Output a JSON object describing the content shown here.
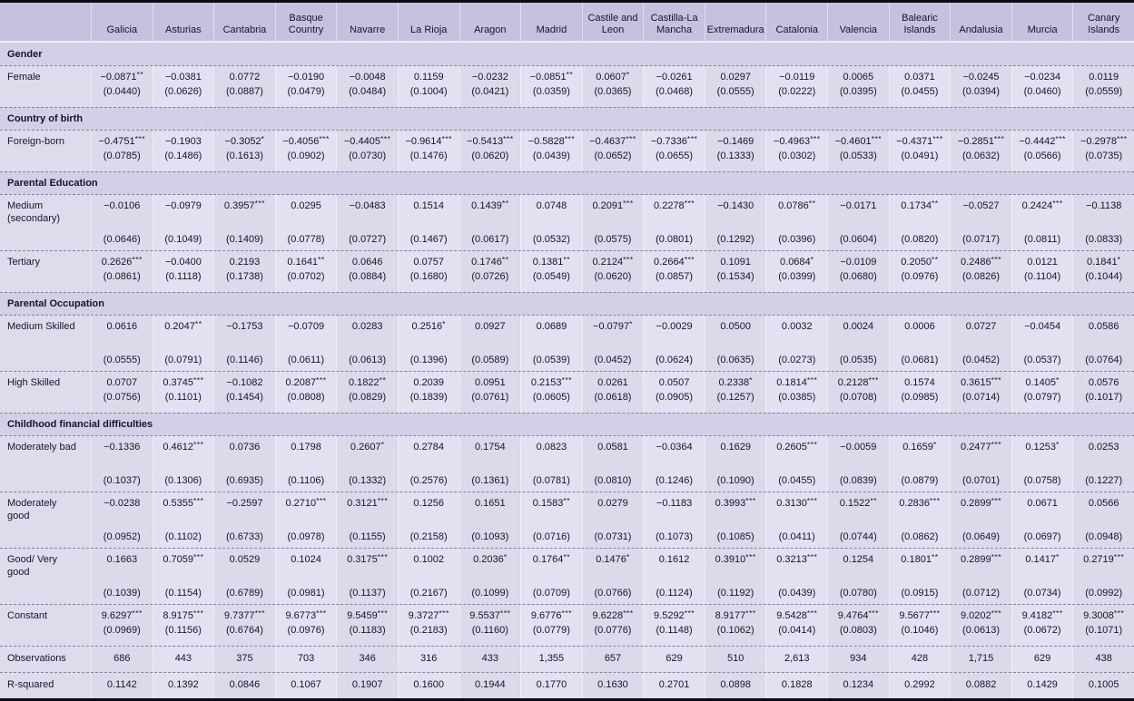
{
  "colors": {
    "header_bg": "#c5c2e0",
    "body_bg": "#dedbec",
    "section_bg": "#d2cfe7",
    "text": "#15142e",
    "border": "#0b0b16"
  },
  "table": {
    "columns": [
      "Galicia",
      "Asturias",
      "Cantabria",
      "Basque Country",
      "Navarre",
      "La Rioja",
      "Aragon",
      "Madrid",
      "Castile and Leon",
      "Castilla-La Mancha",
      "Extremadura",
      "Catalonia",
      "Valencia",
      "Balearic Islands",
      "Andalusia",
      "Murcia",
      "Canary Islands"
    ],
    "rows": [
      {
        "type": "section",
        "label": "Gender"
      },
      {
        "type": "coef",
        "label": "Female",
        "coef": [
          "−0.0871**",
          "−0.0381",
          "0.0772",
          "−0.0190",
          "−0.0048",
          "0.1159",
          "−0.0232",
          "−0.0851**",
          "0.0607*",
          "−0.0261",
          "0.0297",
          "−0.0119",
          "0.0065",
          "0.0371",
          "−0.0245",
          "−0.0234",
          "0.0119"
        ],
        "se": [
          "(0.0440)",
          "(0.0626)",
          "(0.0887)",
          "(0.0479)",
          "(0.0484)",
          "(0.1004)",
          "(0.0421)",
          "(0.0359)",
          "(0.0365)",
          "(0.0468)",
          "(0.0555)",
          "(0.0222)",
          "(0.0395)",
          "(0.0455)",
          "(0.0394)",
          "(0.0460)",
          "(0.0559)"
        ]
      },
      {
        "type": "section",
        "label": "Country of birth"
      },
      {
        "type": "coef",
        "label": "Foreign-born",
        "coef": [
          "−0.4751***",
          "−0.1903",
          "−0.3052*",
          "−0.4056***",
          "−0.4405***",
          "−0.9614***",
          "−0.5413***",
          "−0.5828***",
          "−0.4637***",
          "−0.7336***",
          "−0.1469",
          "−0.4963***",
          "−0.4601***",
          "−0.4371***",
          "−0.2851***",
          "−0.4442***",
          "−0.2978***"
        ],
        "se": [
          "(0.0785)",
          "(0.1486)",
          "(0.1613)",
          "(0.0902)",
          "(0.0730)",
          "(0.1476)",
          "(0.0620)",
          "(0.0439)",
          "(0.0652)",
          "(0.0655)",
          "(0.1333)",
          "(0.0302)",
          "(0.0533)",
          "(0.0491)",
          "(0.0632)",
          "(0.0566)",
          "(0.0735)"
        ]
      },
      {
        "type": "section",
        "label": "Parental Education"
      },
      {
        "type": "coef",
        "label": "Medium (secondary)",
        "coef": [
          "−0.0106",
          "−0.0979",
          "0.3957***",
          "0.0295",
          "−0.0483",
          "0.1514",
          "0.1439**",
          "0.0748",
          "0.2091***",
          "0.2278***",
          "−0.1430",
          "0.0786**",
          "−0.0171",
          "0.1734**",
          "−0.0527",
          "0.2424***",
          "−0.1138"
        ],
        "se": [
          "(0.0646)",
          "(0.1049)",
          "(0.1409)",
          "(0.0778)",
          "(0.0727)",
          "(0.1467)",
          "(0.0617)",
          "(0.0532)",
          "(0.0575)",
          "(0.0801)",
          "(0.1292)",
          "(0.0396)",
          "(0.0604)",
          "(0.0820)",
          "(0.0717)",
          "(0.0811)",
          "(0.0833)"
        ]
      },
      {
        "type": "coef",
        "label": "Tertiary",
        "coef": [
          "0.2626***",
          "−0.0400",
          "0.2193",
          "0.1641**",
          "0.0646",
          "0.0757",
          "0.1746**",
          "0.1381**",
          "0.2124***",
          "0.2664***",
          "0.1091",
          "0.0684*",
          "−0.0109",
          "0.2050**",
          "0.2486***",
          "0.0121",
          "0.1841*"
        ],
        "se": [
          "(0.0861)",
          "(0.1118)",
          "(0.1738)",
          "(0.0702)",
          "(0.0884)",
          "(0.1680)",
          "(0.0726)",
          "(0.0549)",
          "(0.0620)",
          "(0.0857)",
          "(0.1534)",
          "(0.0399)",
          "(0.0680)",
          "(0.0976)",
          "(0.0826)",
          "(0.1104)",
          "(0.1044)"
        ]
      },
      {
        "type": "section",
        "label": "Parental Occupation"
      },
      {
        "type": "coef",
        "label": "Medium Skilled",
        "coef": [
          "0.0616",
          "0.2047**",
          "−0.1753",
          "−0.0709",
          "0.0283",
          "0.2516*",
          "0.0927",
          "0.0689",
          "−0.0797*",
          "−0.0029",
          "0.0500",
          "0.0032",
          "0.0024",
          "0.0006",
          "0.0727",
          "−0.0454",
          "0.0586"
        ],
        "se": [
          "(0.0555)",
          "(0.0791)",
          "(0.1146)",
          "(0.0611)",
          "(0.0613)",
          "(0.1396)",
          "(0.0589)",
          "(0.0539)",
          "(0.0452)",
          "(0.0624)",
          "(0.0635)",
          "(0.0273)",
          "(0.0535)",
          "(0.0681)",
          "(0.0452)",
          "(0.0537)",
          "(0.0764)"
        ]
      },
      {
        "type": "coef",
        "label": "High Skilled",
        "coef": [
          "0.0707",
          "0.3745***",
          "−0.1082",
          "0.2087***",
          "0.1822**",
          "0.2039",
          "0.0951",
          "0.2153***",
          "0.0261",
          "0.0507",
          "0.2338*",
          "0.1814***",
          "0.2128***",
          "0.1574",
          "0.3615***",
          "0.1405*",
          "0.0576"
        ],
        "se": [
          "(0.0756)",
          "(0.1101)",
          "(0.1454)",
          "(0.0808)",
          "(0.0829)",
          "(0.1839)",
          "(0.0761)",
          "(0.0605)",
          "(0.0618)",
          "(0.0905)",
          "(0.1257)",
          "(0.0385)",
          "(0.0708)",
          "(0.0985)",
          "(0.0714)",
          "(0.0797)",
          "(0.1017)"
        ]
      },
      {
        "type": "section",
        "label": "Childhood financial difficulties"
      },
      {
        "type": "coef",
        "label": "Moderately bad",
        "coef": [
          "−0.1336",
          "0.4612***",
          "0.0736",
          "0.1798",
          "0.2607*",
          "0.2784",
          "0.1754",
          "0.0823",
          "0.0581",
          "−0.0364",
          "0.1629",
          "0.2605***",
          "−0.0059",
          "0.1659*",
          "0.2477***",
          "0.1253*",
          "0.0253"
        ],
        "se": [
          "(0.1037)",
          "(0.1306)",
          "(0.6935)",
          "(0.1106)",
          "(0.1332)",
          "(0.2576)",
          "(0.1361)",
          "(0.0781)",
          "(0.0810)",
          "(0.1246)",
          "(0.1090)",
          "(0.0455)",
          "(0.0839)",
          "(0.0879)",
          "(0.0701)",
          "(0.0758)",
          "(0.1227)"
        ]
      },
      {
        "type": "coef",
        "label": "Moderately good",
        "coef": [
          "−0.0238",
          "0.5355***",
          "−0.2597",
          "0.2710***",
          "0.3121***",
          "0.1256",
          "0.1651",
          "0.1583**",
          "0.0279",
          "−0.1183",
          "0.3993***",
          "0.3130***",
          "0.1522**",
          "0.2836***",
          "0.2899***",
          "0.0671",
          "0.0566"
        ],
        "se": [
          "(0.0952)",
          "(0.1102)",
          "(0.6733)",
          "(0.0978)",
          "(0.1155)",
          "(0.2158)",
          "(0.1093)",
          "(0.0716)",
          "(0.0731)",
          "(0.1073)",
          "(0.1085)",
          "(0.0411)",
          "(0.0744)",
          "(0.0862)",
          "(0.0649)",
          "(0.0697)",
          "(0.0948)"
        ]
      },
      {
        "type": "coef",
        "label": "Good/ Very good",
        "coef": [
          "0.1663",
          "0.7059***",
          "0.0529",
          "0.1024",
          "0.3175***",
          "0.1002",
          "0.2036*",
          "0.1764**",
          "0.1476*",
          "0.1612",
          "0.3910***",
          "0.3213***",
          "0.1254",
          "0.1801**",
          "0.2899***",
          "0.1417*",
          "0.2719***"
        ],
        "se": [
          "(0.1039)",
          "(0.1154)",
          "(0.6789)",
          "(0.0981)",
          "(0.1137)",
          "(0.2167)",
          "(0.1099)",
          "(0.0709)",
          "(0.0766)",
          "(0.1124)",
          "(0.1192)",
          "(0.0439)",
          "(0.0780)",
          "(0.0915)",
          "(0.0712)",
          "(0.0734)",
          "(0.0992)"
        ]
      },
      {
        "type": "coef",
        "label": "Constant",
        "coef": [
          "9.6297***",
          "8.9175***",
          "9.7377***",
          "9.6773***",
          "9.5459***",
          "9.3727***",
          "9.5537***",
          "9.6776***",
          "9.6228***",
          "9.5292***",
          "8.9177***",
          "9.5428***",
          "9.4764***",
          "9.5677***",
          "9.0202***",
          "9.4182***",
          "9.3008***"
        ],
        "se": [
          "(0.0969)",
          "(0.1156)",
          "(0.6764)",
          "(0.0976)",
          "(0.1183)",
          "(0.2183)",
          "(0.1160)",
          "(0.0779)",
          "(0.0776)",
          "(0.1148)",
          "(0.1062)",
          "(0.0414)",
          "(0.0803)",
          "(0.1046)",
          "(0.0613)",
          "(0.0672)",
          "(0.1071)"
        ]
      },
      {
        "type": "stat",
        "label": "Observations",
        "values": [
          "686",
          "443",
          "375",
          "703",
          "346",
          "316",
          "433",
          "1,355",
          "657",
          "629",
          "510",
          "2,613",
          "934",
          "428",
          "1,715",
          "629",
          "438"
        ]
      },
      {
        "type": "stat",
        "label": "R-squared",
        "values": [
          "0.1142",
          "0.1392",
          "0.0846",
          "0.1067",
          "0.1907",
          "0.1600",
          "0.1944",
          "0.1770",
          "0.1630",
          "0.2701",
          "0.0898",
          "0.1828",
          "0.1234",
          "0.2992",
          "0.0882",
          "0.1429",
          "0.1005"
        ]
      }
    ]
  }
}
